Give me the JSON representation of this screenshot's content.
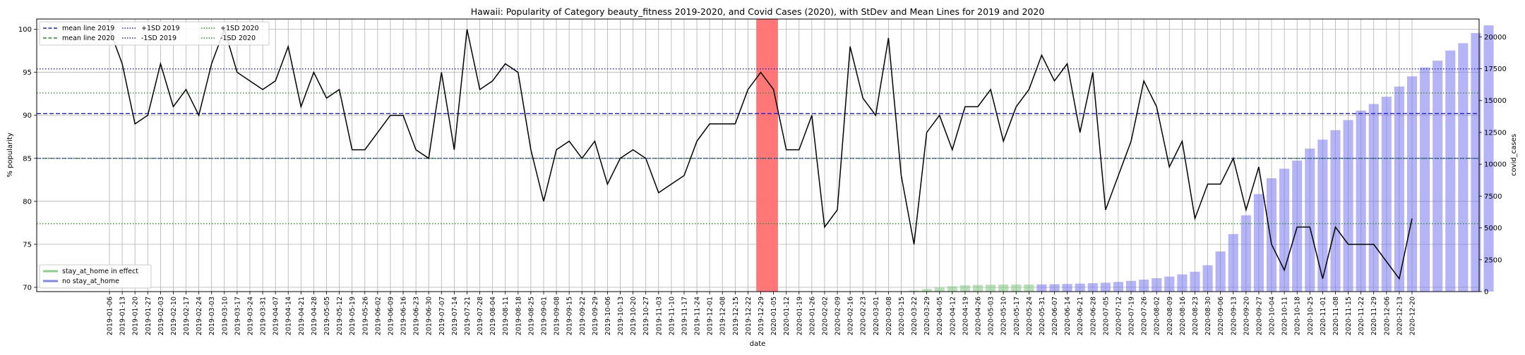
{
  "chart_data": {
    "type": "bar+line",
    "title": "Hawaii: Popularity of Category beauty_fitness 2019-2020, and Covid Cases (2020), with StDev and Mean Lines for 2019 and 2020",
    "xlabel": "date",
    "ylabel": "% popularity",
    "y2label": "covid_cases",
    "ylim": [
      69.5,
      101.2
    ],
    "y2lim": [
      0,
      21400
    ],
    "yticks": [
      70,
      75,
      80,
      85,
      90,
      95,
      100
    ],
    "y2ticks": [
      0,
      2500,
      5000,
      7500,
      10000,
      12500,
      15000,
      17500,
      20000
    ],
    "y2ticklabels": [
      "0",
      "2500",
      "5000",
      "7500",
      "10000",
      "12500",
      "15000",
      "17500",
      "20000"
    ],
    "grid": true,
    "dates": [
      "2019-01-06",
      "2019-01-13",
      "2019-01-20",
      "2019-01-27",
      "2019-02-03",
      "2019-02-10",
      "2019-02-17",
      "2019-02-24",
      "2019-03-03",
      "2019-03-10",
      "2019-03-17",
      "2019-03-24",
      "2019-03-31",
      "2019-04-07",
      "2019-04-14",
      "2019-04-21",
      "2019-04-28",
      "2019-05-05",
      "2019-05-12",
      "2019-05-19",
      "2019-05-26",
      "2019-06-02",
      "2019-06-09",
      "2019-06-16",
      "2019-06-23",
      "2019-06-30",
      "2019-07-07",
      "2019-07-14",
      "2019-07-21",
      "2019-07-28",
      "2019-08-04",
      "2019-08-11",
      "2019-08-18",
      "2019-08-25",
      "2019-09-01",
      "2019-09-08",
      "2019-09-15",
      "2019-09-22",
      "2019-09-29",
      "2019-10-06",
      "2019-10-13",
      "2019-10-20",
      "2019-10-27",
      "2019-11-03",
      "2019-11-10",
      "2019-11-17",
      "2019-11-24",
      "2019-12-01",
      "2019-12-08",
      "2019-12-15",
      "2019-12-22",
      "2019-12-29",
      "2020-01-05",
      "2020-01-12",
      "2020-01-19",
      "2020-01-26",
      "2020-02-02",
      "2020-02-09",
      "2020-02-16",
      "2020-02-23",
      "2020-03-01",
      "2020-03-08",
      "2020-03-15",
      "2020-03-22",
      "2020-03-29",
      "2020-04-05",
      "2020-04-12",
      "2020-04-19",
      "2020-04-26",
      "2020-05-03",
      "2020-05-10",
      "2020-05-17",
      "2020-05-24",
      "2020-05-31",
      "2020-06-07",
      "2020-06-14",
      "2020-06-21",
      "2020-06-28",
      "2020-07-05",
      "2020-07-12",
      "2020-07-19",
      "2020-07-26",
      "2020-08-02",
      "2020-08-09",
      "2020-08-16",
      "2020-08-23",
      "2020-08-30",
      "2020-09-06",
      "2020-09-13",
      "2020-09-20",
      "2020-09-27",
      "2020-10-04",
      "2020-10-11",
      "2020-10-18",
      "2020-10-25",
      "2020-11-01",
      "2020-11-08",
      "2020-11-15",
      "2020-11-22",
      "2020-11-29",
      "2020-12-06",
      "2020-12-13",
      "2020-12-20"
    ],
    "date_labels": [
      "2019-01-06",
      "2019-01-13",
      "2019-01-20",
      "2019-01-27",
      "2019-02-03",
      "2019-02-10",
      "2019-02-17",
      "2019-02-24",
      "2019-03-03",
      "2019-03-10",
      "2019-03-17",
      "2019-03-24",
      "2019-03-31",
      "2019-04-07",
      "2019-04-14",
      "2019-04-21",
      "2019-04-28",
      "2019-05-05",
      "2019-05-12",
      "2019-05-19",
      "2019-05-26",
      "2019-06-02",
      "2019-06-09",
      "2019-06-16",
      "2019-06-23",
      "2019-06-30",
      "2019-07-07",
      "2019-07-14",
      "2019-07-21",
      "2019-07-28",
      "2019-08-04",
      "2019-08-11",
      "2019-08-18",
      "2019-08-25",
      "2019-09-01",
      "2019-09-08",
      "2019-09-15",
      "2019-09-22",
      "2019-09-29",
      "2019-10-06",
      "2019-10-13",
      "2019-10-20",
      "2019-10-27",
      "2019-11-03",
      "2019-11-10",
      "2019-11-17",
      "2019-11-24",
      "2019-12-01",
      "2019-12-08",
      "2019-12-15",
      "2019-12-22",
      "2019-12-29",
      "2020-01-05",
      "2020-01-12",
      "2020-01-19",
      "2020-01-26",
      "2020-02-02",
      "2020-02-09",
      "2020-02-16",
      "2020-02-23",
      "2020-03-01",
      "2020-03-08",
      "2020-03-15",
      "2020-03-22",
      "2020-03-29",
      "2020-04-05",
      "2020-04-12",
      "2020-04-19",
      "2020-04-26",
      "2020-05-03",
      "2020-05-10",
      "2020-05-17",
      "2020-05-24",
      "2020-05-31",
      "2020-06-07",
      "2020-06-14",
      "2020-06-21",
      "2020-06-28",
      "2020-07-05",
      "2020-07-12",
      "2020-07-19",
      "2020-07-26",
      "2020-08-02",
      "2020-08-09",
      "2020-08-16",
      "2020-08-23",
      "2020-08-30",
      "2020-09-06",
      "2020-09-13",
      "2020-09-20",
      "2020-09-27",
      "2020-10-04",
      "2020-10-11",
      "2020-10-18",
      "2020-10-25",
      "2020-11-01",
      "2020-11-08",
      "2020-11-15",
      "2020-11-22",
      "2020-11-29",
      "2020-12-06",
      "2020-12-13",
      "2020-12-20"
    ],
    "popularity": [
      100,
      96,
      89,
      90,
      96,
      91,
      93,
      90,
      96,
      100,
      95,
      94,
      93,
      94,
      98,
      91,
      95,
      92,
      93,
      86,
      86,
      88,
      90,
      90,
      86,
      85,
      95,
      86,
      100,
      93,
      94,
      96,
      95,
      86,
      80,
      86,
      87,
      85,
      87,
      82,
      85,
      86,
      85,
      81,
      82,
      83,
      87,
      89,
      89,
      89,
      93,
      95,
      93,
      86,
      86,
      90,
      77,
      79,
      98,
      92,
      90,
      99,
      83,
      75,
      88,
      90,
      86,
      91,
      91,
      93,
      87,
      91,
      93,
      97,
      94,
      96,
      88,
      95,
      79,
      83,
      87,
      94,
      91,
      84,
      87,
      78,
      82,
      82,
      85,
      79,
      84,
      75,
      72,
      77,
      77,
      71,
      77,
      75,
      75,
      75,
      73,
      71,
      78
    ],
    "covid_bars": {
      "start_index": 62,
      "values": [
        20,
        90,
        210,
        320,
        420,
        490,
        520,
        540,
        550,
        560,
        560,
        570,
        580,
        600,
        630,
        660,
        700,
        760,
        840,
        940,
        1050,
        1180,
        1350,
        1560,
        2070,
        3150,
        4520,
        5990,
        7660,
        8900,
        9650,
        10290,
        11230,
        11930,
        12680,
        13470,
        14210,
        14730,
        15300,
        16100,
        16900,
        17600,
        18130,
        18930,
        19500,
        20300,
        20900
      ],
      "stay_home_color": "#7fc97f",
      "no_stay_home_color": "#7777ee",
      "stay_home_end_index": 72
    },
    "highlight": {
      "label": "2020-01-05",
      "index": 51.5,
      "color": "#ff7070"
    },
    "mean_2019": 90.2,
    "sd_2019": 5.2,
    "mean_2020": 85.0,
    "sd_2020": 7.6,
    "legend_lines": [
      {
        "label": "mean line 2019",
        "color": "#1f1fd6",
        "dash": "dashed"
      },
      {
        "label": "mean line 2020",
        "color": "#2a8a2a",
        "dash": "dashed"
      },
      {
        "label": "+1SD 2019",
        "color": "#1f1fd6",
        "dash": "dotted"
      },
      {
        "label": "-1SD 2019",
        "color": "#1f1fd6",
        "dash": "dotted"
      },
      {
        "label": "+1SD 2020",
        "color": "#2a8a2a",
        "dash": "dotted"
      },
      {
        "label": "-1SD 2020",
        "color": "#2a8a2a",
        "dash": "dotted"
      }
    ],
    "legend_bars": [
      {
        "label": "stay_at_home in effect",
        "color": "#7fc97f"
      },
      {
        "label": "no stay_at_home",
        "color": "#7777ee"
      }
    ],
    "legend_upper_placement": "upper-left",
    "legend_lower_placement": "lower-left",
    "popularity_line_color": "#000000"
  }
}
